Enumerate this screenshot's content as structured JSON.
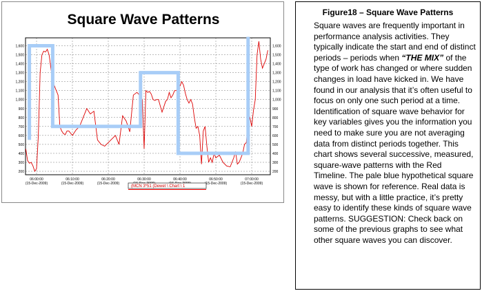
{
  "chart_data": {
    "type": "line",
    "title": "Square Wave Patterns",
    "ylim": [
      200,
      1650
    ],
    "y_ticks": [
      200,
      300,
      400,
      500,
      600,
      700,
      800,
      900,
      1000,
      1100,
      1200,
      1300,
      1400,
      1500,
      1600
    ],
    "y_tick_labels": [
      "200",
      "300",
      "400",
      "500",
      "600",
      "700",
      "800",
      "900",
      "1,000",
      "1,100",
      "1,200",
      "1,300",
      "1,400",
      "1,500",
      "1,600"
    ],
    "x_ticks": [
      {
        "time": "06:00:00",
        "date": "(15-Dec-2009)"
      },
      {
        "time": "06:10:00",
        "date": "(15-Dec-2009)"
      },
      {
        "time": "06:20:00",
        "date": "(15-Dec-2009)"
      },
      {
        "time": "06:30:00",
        "date": "(15-Dec-2009)"
      },
      {
        "time": "06:40:00",
        "date": "(15-Dec-2009)"
      },
      {
        "time": "06:50:00",
        "date": "(15-Dec-2009)"
      },
      {
        "time": "07:00:00",
        "date": "(15-Dec-2009)"
      }
    ],
    "legend": {
      "label": "(MCN 3*51 (Dewet \\ Chart \\ 1",
      "color": "#ff0000",
      "placement": "bottom"
    },
    "grid": true,
    "series": [
      {
        "color": "#dd0000",
        "minutes": [
          -3,
          -2.5,
          -2,
          -1.5,
          -1,
          -0.5,
          0,
          0.5,
          1,
          1.5,
          2,
          2.5,
          3,
          3.5,
          4,
          4.5,
          5,
          5.5,
          6,
          6.5,
          7,
          7.5,
          8,
          8.5,
          9,
          10,
          11,
          12,
          13,
          14,
          15,
          16,
          17,
          18,
          19,
          20,
          21,
          22,
          23,
          24,
          25,
          26,
          27,
          28,
          29,
          29.5,
          30,
          30.5,
          31,
          31.5,
          32,
          32.5,
          33,
          33.5,
          34,
          35,
          36,
          36.5,
          37,
          37.5,
          38,
          38.5,
          39,
          39.5,
          40,
          40.5,
          41,
          41.5,
          42,
          42.5,
          43,
          43.5,
          44,
          44.5,
          45,
          45.5,
          46,
          46.5,
          47,
          47.5,
          48,
          48.5,
          49,
          49.5,
          50,
          51,
          52,
          53,
          54,
          55,
          55.5,
          56,
          56.5,
          57,
          57.5,
          58,
          58.5,
          59,
          59.5,
          60,
          60.5,
          61,
          61.5,
          62,
          62.5,
          63,
          63.5,
          64,
          64.5
        ],
        "values": [
          450,
          320,
          290,
          300,
          260,
          200,
          230,
          600,
          1300,
          1500,
          1540,
          1530,
          1560,
          1500,
          1350,
          1200,
          1150,
          1100,
          1050,
          700,
          650,
          620,
          610,
          650,
          650,
          600,
          660,
          700,
          800,
          900,
          840,
          870,
          550,
          500,
          480,
          520,
          560,
          600,
          500,
          820,
          760,
          640,
          1050,
          1080,
          1040,
          1000,
          450,
          1100,
          1080,
          1090,
          1060,
          1000,
          990,
          1000,
          1000,
          860,
          980,
          1000,
          1080,
          1020,
          1050,
          1100,
          1100,
          1140,
          1150,
          1200,
          1160,
          1070,
          1000,
          960,
          1000,
          950,
          800,
          680,
          700,
          600,
          280,
          650,
          700,
          480,
          300,
          350,
          300,
          400,
          350,
          380,
          300,
          260,
          250,
          350,
          420,
          280,
          300,
          350,
          400,
          500,
          520,
          750,
          800,
          700,
          880,
          1000,
          1500,
          1650,
          1450,
          1350,
          1400,
          1450,
          1550
        ]
      },
      {
        "name": "",
        "color": "#a8cdf7",
        "hypothetical": true,
        "minutes": [
          -2,
          -2,
          4.5,
          4.5,
          29,
          29,
          39.5,
          39.5,
          49,
          49,
          59,
          59
        ],
        "values": [
          550,
          1600,
          1600,
          700,
          700,
          1300,
          1300,
          400,
          400,
          400,
          400,
          1700
        ]
      }
    ]
  },
  "caption": {
    "title": "Figure18 – Square Wave Patterns",
    "text_before": "Square waves are frequently important in performance analysis activities. They typically indicate the start and end of distinct periods – periods when",
    "emphasis": "“THE MIX”",
    "text_after": "of the type of work has changed or where sudden changes in load have kicked in.  We have found in our analysis that it’s often useful to focus on only one such period at a time.  Identification of square wave behavior for key variables gives you the information you need to make sure you are not averaging data from distinct periods together.  This chart shows several successive, measured, square-wave patterns with the Red Timeline.  The pale blue hypothetical square wave is shown for reference.  Real data is messy, but with a little practice, it’s pretty easy to identify these kinds of square wave patterns.  SUGGESTION:  Check back on some of the previous graphs to see what other square waves you can discover."
  }
}
